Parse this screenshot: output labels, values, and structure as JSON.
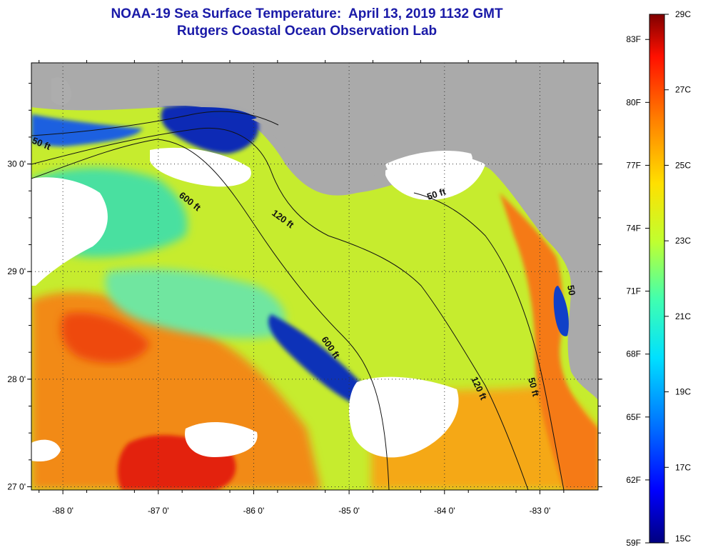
{
  "title": {
    "line1": "NOAA-19 Sea Surface Temperature:  April 13, 2019 1132 GMT",
    "line2": "Rutgers Coastal Ocean Observation Lab"
  },
  "map": {
    "lon_range": [
      -88.33,
      -82.39
    ],
    "lat_range": [
      26.97,
      30.94
    ],
    "lon_ticks": [
      {
        "value": -88,
        "label": "-88 0'"
      },
      {
        "value": -87,
        "label": "-87 0'"
      },
      {
        "value": -86,
        "label": "-86 0'"
      },
      {
        "value": -85,
        "label": "-85 0'"
      },
      {
        "value": -84,
        "label": "-84 0'"
      },
      {
        "value": -83,
        "label": "-83 0'"
      }
    ],
    "lat_ticks": [
      {
        "value": 30,
        "label": "30 0'"
      },
      {
        "value": 29,
        "label": "29 0'"
      },
      {
        "value": 28,
        "label": "28 0'"
      },
      {
        "value": 27,
        "label": "27 0'"
      }
    ],
    "contour_labels": [
      "50 ft",
      "600 ft",
      "120 ft",
      "50 ft",
      "600 ft",
      "120 ft",
      "50 ft",
      "50"
    ],
    "colors": {
      "land": "#aaaaaa",
      "cloud": "#ffffff",
      "cold_water": "#0a2fb0",
      "shelf_water": "#b4ec32",
      "warm_water": "#f08010",
      "hot_water": "#e01a08"
    }
  },
  "colorbar": {
    "min_c": 15,
    "max_c": 29,
    "celsius_labels": [
      "29C",
      "27C",
      "25C",
      "23C",
      "21C",
      "19C",
      "17C",
      "15C"
    ],
    "fahrenheit_labels": [
      "83F",
      "80F",
      "77F",
      "74F",
      "71F",
      "68F",
      "65F",
      "62F",
      "59F"
    ],
    "fahrenheit_values": [
      83,
      80,
      77,
      74,
      71,
      68,
      65,
      62,
      59
    ],
    "stops": [
      "#000080",
      "#0000ff",
      "#0070ff",
      "#00e0ff",
      "#40ffb0",
      "#c0ff30",
      "#ffe000",
      "#ff8000",
      "#ff1000",
      "#800000"
    ]
  }
}
